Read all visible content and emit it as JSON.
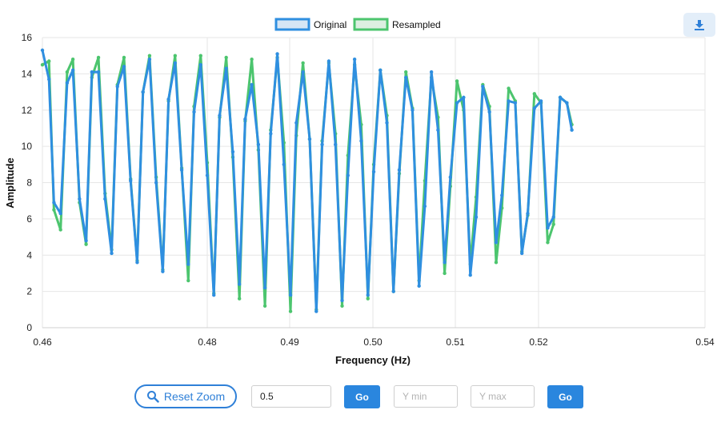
{
  "chart_data": {
    "type": "line",
    "title": "",
    "xlabel": "Frequency (Hz)",
    "ylabel": "Amplitude",
    "xlim": [
      0.46,
      0.54
    ],
    "ylim": [
      0,
      16
    ],
    "x_ticks": [
      0.46,
      0.48,
      0.49,
      0.5,
      0.51,
      0.52,
      0.54
    ],
    "x_tick_labels": [
      "0.46",
      "0.48",
      "0.49",
      "0.50",
      "0.51",
      "0.52",
      "0.54"
    ],
    "y_ticks": [
      0,
      2,
      4,
      6,
      8,
      10,
      12,
      14,
      16
    ],
    "y_tick_labels": [
      "0",
      "2",
      "4",
      "6",
      "8",
      "10",
      "12",
      "14",
      "16"
    ],
    "grid": true,
    "legend_position": "top-center",
    "series": [
      {
        "name": "Original",
        "color": "#2f8fe0",
        "points": [
          [
            0.46,
            15.3
          ],
          [
            0.4608,
            13.7
          ],
          [
            0.4614,
            6.9
          ],
          [
            0.4622,
            6.3
          ],
          [
            0.463,
            13.5
          ],
          [
            0.4637,
            14.2
          ],
          [
            0.4645,
            7.1
          ],
          [
            0.4653,
            4.8
          ],
          [
            0.466,
            14.1
          ],
          [
            0.4668,
            14.1
          ],
          [
            0.4676,
            7.1
          ],
          [
            0.4684,
            4.1
          ],
          [
            0.4691,
            13.3
          ],
          [
            0.4699,
            14.4
          ],
          [
            0.4707,
            8.1
          ],
          [
            0.4715,
            3.6
          ],
          [
            0.4722,
            13.0
          ],
          [
            0.473,
            14.8
          ],
          [
            0.4738,
            8.0
          ],
          [
            0.4746,
            3.1
          ],
          [
            0.4753,
            12.6
          ],
          [
            0.4761,
            14.6
          ],
          [
            0.4769,
            8.7
          ],
          [
            0.4777,
            3.5
          ],
          [
            0.4784,
            11.9
          ],
          [
            0.4792,
            14.5
          ],
          [
            0.48,
            8.4
          ],
          [
            0.4808,
            1.8
          ],
          [
            0.4815,
            11.7
          ],
          [
            0.4823,
            14.3
          ],
          [
            0.4831,
            9.7
          ],
          [
            0.4839,
            2.4
          ],
          [
            0.4846,
            11.5
          ],
          [
            0.4854,
            13.4
          ],
          [
            0.4862,
            10.1
          ],
          [
            0.487,
            2.2
          ],
          [
            0.4877,
            10.7
          ],
          [
            0.4885,
            15.1
          ],
          [
            0.4893,
            9.0
          ],
          [
            0.4901,
            1.8
          ],
          [
            0.4908,
            11.3
          ],
          [
            0.4916,
            14.1
          ],
          [
            0.4924,
            10.4
          ],
          [
            0.4932,
            0.9
          ],
          [
            0.4939,
            10.1
          ],
          [
            0.4947,
            14.7
          ],
          [
            0.4955,
            10.1
          ],
          [
            0.4963,
            1.5
          ],
          [
            0.497,
            8.4
          ],
          [
            0.4978,
            14.8
          ],
          [
            0.4986,
            10.3
          ],
          [
            0.4994,
            1.8
          ],
          [
            0.5001,
            8.6
          ],
          [
            0.5009,
            14.2
          ],
          [
            0.5017,
            11.3
          ],
          [
            0.5025,
            2.0
          ],
          [
            0.5032,
            8.7
          ],
          [
            0.504,
            13.8
          ],
          [
            0.5048,
            12.0
          ],
          [
            0.5056,
            2.3
          ],
          [
            0.5063,
            6.7
          ],
          [
            0.5071,
            14.1
          ],
          [
            0.5079,
            10.9
          ],
          [
            0.5087,
            3.6
          ],
          [
            0.5094,
            8.3
          ],
          [
            0.5102,
            12.4
          ],
          [
            0.511,
            12.7
          ],
          [
            0.5118,
            2.9
          ],
          [
            0.5125,
            6.1
          ],
          [
            0.5133,
            13.3
          ],
          [
            0.5141,
            11.9
          ],
          [
            0.5149,
            4.7
          ],
          [
            0.5156,
            7.3
          ],
          [
            0.5164,
            12.5
          ],
          [
            0.5172,
            12.4
          ],
          [
            0.518,
            4.1
          ],
          [
            0.5187,
            6.3
          ],
          [
            0.5195,
            12.1
          ],
          [
            0.5203,
            12.5
          ],
          [
            0.5211,
            5.5
          ],
          [
            0.5218,
            6.1
          ],
          [
            0.5226,
            12.7
          ],
          [
            0.5234,
            12.4
          ],
          [
            0.524,
            10.9
          ]
        ]
      },
      {
        "name": "Resampled",
        "color": "#4cc56e",
        "points": [
          [
            0.46,
            14.5
          ],
          [
            0.4608,
            14.7
          ],
          [
            0.4614,
            6.5
          ],
          [
            0.4622,
            5.4
          ],
          [
            0.463,
            14.1
          ],
          [
            0.4637,
            14.8
          ],
          [
            0.4645,
            6.9
          ],
          [
            0.4653,
            4.6
          ],
          [
            0.466,
            13.8
          ],
          [
            0.4668,
            14.9
          ],
          [
            0.4676,
            7.4
          ],
          [
            0.4684,
            4.3
          ],
          [
            0.4691,
            13.4
          ],
          [
            0.4699,
            14.9
          ],
          [
            0.4707,
            8.2
          ],
          [
            0.4715,
            3.7
          ],
          [
            0.4722,
            13.0
          ],
          [
            0.473,
            15.0
          ],
          [
            0.4738,
            8.3
          ],
          [
            0.4746,
            3.2
          ],
          [
            0.4753,
            12.5
          ],
          [
            0.4761,
            15.0
          ],
          [
            0.4769,
            8.8
          ],
          [
            0.4777,
            2.6
          ],
          [
            0.4784,
            12.2
          ],
          [
            0.4792,
            15.0
          ],
          [
            0.48,
            9.1
          ],
          [
            0.4808,
            1.9
          ],
          [
            0.4815,
            11.6
          ],
          [
            0.4823,
            14.9
          ],
          [
            0.4831,
            9.4
          ],
          [
            0.4839,
            1.6
          ],
          [
            0.4846,
            11.4
          ],
          [
            0.4854,
            14.8
          ],
          [
            0.4862,
            9.8
          ],
          [
            0.487,
            1.2
          ],
          [
            0.4877,
            10.9
          ],
          [
            0.4885,
            14.9
          ],
          [
            0.4893,
            10.2
          ],
          [
            0.4901,
            0.9
          ],
          [
            0.4908,
            10.6
          ],
          [
            0.4916,
            14.6
          ],
          [
            0.4924,
            10.4
          ],
          [
            0.4932,
            1.0
          ],
          [
            0.4939,
            10.3
          ],
          [
            0.4947,
            14.6
          ],
          [
            0.4955,
            10.7
          ],
          [
            0.4963,
            1.2
          ],
          [
            0.497,
            9.5
          ],
          [
            0.4978,
            14.5
          ],
          [
            0.4986,
            11.2
          ],
          [
            0.4994,
            1.6
          ],
          [
            0.5001,
            9.0
          ],
          [
            0.5009,
            14.2
          ],
          [
            0.5017,
            11.7
          ],
          [
            0.5025,
            2.0
          ],
          [
            0.5032,
            8.5
          ],
          [
            0.504,
            14.1
          ],
          [
            0.5048,
            12.1
          ],
          [
            0.5056,
            2.6
          ],
          [
            0.5063,
            8.1
          ],
          [
            0.5071,
            13.8
          ],
          [
            0.5079,
            11.6
          ],
          [
            0.5087,
            3.0
          ],
          [
            0.5094,
            7.8
          ],
          [
            0.5102,
            13.6
          ],
          [
            0.511,
            12.0
          ],
          [
            0.5118,
            3.5
          ],
          [
            0.5125,
            7.2
          ],
          [
            0.5133,
            13.4
          ],
          [
            0.5141,
            12.2
          ],
          [
            0.5149,
            3.6
          ],
          [
            0.5156,
            6.6
          ],
          [
            0.5164,
            13.2
          ],
          [
            0.5172,
            12.5
          ],
          [
            0.518,
            4.2
          ],
          [
            0.5187,
            6.2
          ],
          [
            0.5195,
            12.9
          ],
          [
            0.5203,
            12.4
          ],
          [
            0.5211,
            4.7
          ],
          [
            0.5218,
            5.7
          ],
          [
            0.5226,
            12.7
          ],
          [
            0.5234,
            12.4
          ],
          [
            0.524,
            11.2
          ]
        ]
      }
    ]
  },
  "controls": {
    "reset_label": "Reset Zoom",
    "step_value": "0.5",
    "go_label": "Go",
    "ymin_placeholder": "Y min",
    "ymax_placeholder": "Y max",
    "go2_label": "Go"
  },
  "colors": {
    "accent": "#2a86de",
    "grid": "#e6e6e6"
  },
  "icons": {
    "download": "download-icon",
    "reset": "search-icon"
  }
}
